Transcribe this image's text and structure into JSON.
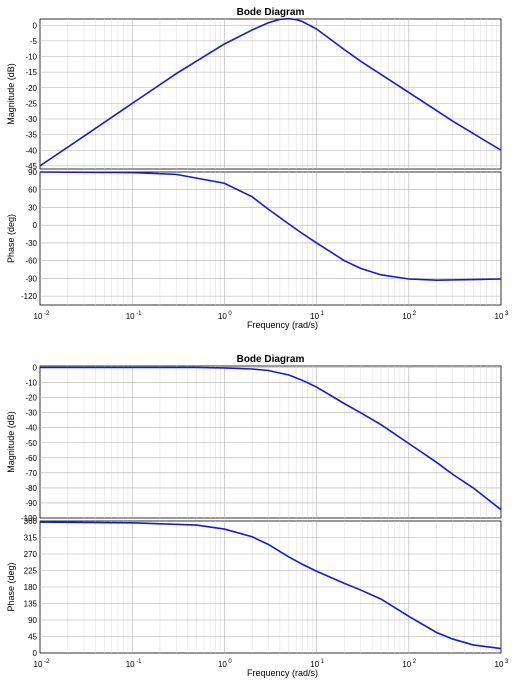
{
  "chart_data": [
    {
      "type": "line",
      "title": "Bode Diagram",
      "xlabel": "Frequency  (rad/s)",
      "xscale": "log",
      "xlim": [
        0.01,
        1000
      ],
      "x_ticks": [
        {
          "base": "10",
          "exp": "-2"
        },
        {
          "base": "10",
          "exp": "-1"
        },
        {
          "base": "10",
          "exp": "0"
        },
        {
          "base": "10",
          "exp": "1"
        },
        {
          "base": "10",
          "exp": "2"
        },
        {
          "base": "10",
          "exp": "3"
        }
      ],
      "color": "#1a1acc",
      "grid": true,
      "panels": [
        {
          "ylabel": "Magnitude (dB)",
          "ylim": [
            -46,
            2
          ],
          "yticks": [
            0,
            -5,
            -10,
            -15,
            -20,
            -25,
            -30,
            -35,
            -40,
            -45
          ],
          "x": [
            0.01,
            0.03,
            0.1,
            0.3,
            1,
            2,
            3,
            4,
            5,
            6,
            7,
            10,
            20,
            30,
            100,
            300,
            1000
          ],
          "y": [
            -45,
            -35.5,
            -25,
            -15.5,
            -6,
            -1.5,
            0.8,
            1.9,
            2.1,
            1.8,
            1.2,
            -1.2,
            -7.8,
            -11.5,
            -21.5,
            -30.7,
            -40
          ]
        },
        {
          "ylabel": "Phase (deg)",
          "ylim": [
            -135,
            90
          ],
          "yticks": [
            90,
            60,
            30,
            0,
            -30,
            -60,
            -90,
            -120
          ],
          "x": [
            0.01,
            0.1,
            0.3,
            1,
            2,
            3,
            5,
            7,
            10,
            20,
            30,
            50,
            100,
            200,
            500,
            1000
          ],
          "y": [
            90,
            89,
            86,
            71,
            48,
            27,
            2,
            -14,
            -30,
            -60,
            -73,
            -84,
            -91,
            -93,
            -92,
            -91
          ]
        }
      ]
    },
    {
      "type": "line",
      "title": "Bode Diagram",
      "xlabel": "Frequency  (rad/s)",
      "xscale": "log",
      "xlim": [
        0.01,
        1000
      ],
      "x_ticks": [
        {
          "base": "10",
          "exp": "-2"
        },
        {
          "base": "10",
          "exp": "-1"
        },
        {
          "base": "10",
          "exp": "0"
        },
        {
          "base": "10",
          "exp": "1"
        },
        {
          "base": "10",
          "exp": "2"
        },
        {
          "base": "10",
          "exp": "3"
        }
      ],
      "color": "#1a1acc",
      "grid": true,
      "panels": [
        {
          "ylabel": "Magnitude (dB)",
          "ylim": [
            -100,
            1
          ],
          "yticks": [
            0,
            -10,
            -20,
            -30,
            -40,
            -50,
            -60,
            -70,
            -80,
            -90,
            -100
          ],
          "x": [
            0.01,
            0.1,
            0.5,
            1,
            2,
            3,
            5,
            7,
            10,
            20,
            30,
            50,
            100,
            200,
            300,
            500,
            1000
          ],
          "y": [
            0,
            0,
            0,
            -0.3,
            -1,
            -2,
            -5,
            -8.5,
            -13,
            -24,
            -30,
            -38,
            -50.5,
            -63,
            -71,
            -80,
            -94.5
          ]
        },
        {
          "ylabel": "Phase (deg)",
          "ylim": [
            0,
            360
          ],
          "yticks": [
            360,
            315,
            270,
            225,
            180,
            135,
            90,
            45,
            0
          ],
          "x": [
            0.01,
            0.1,
            0.5,
            1,
            2,
            3,
            5,
            7,
            10,
            20,
            30,
            50,
            100,
            200,
            300,
            500,
            1000
          ],
          "y": [
            357,
            355,
            349,
            338,
            317,
            296,
            262,
            242,
            223,
            190,
            172,
            147,
            100,
            56,
            38,
            22,
            12
          ]
        }
      ]
    }
  ]
}
